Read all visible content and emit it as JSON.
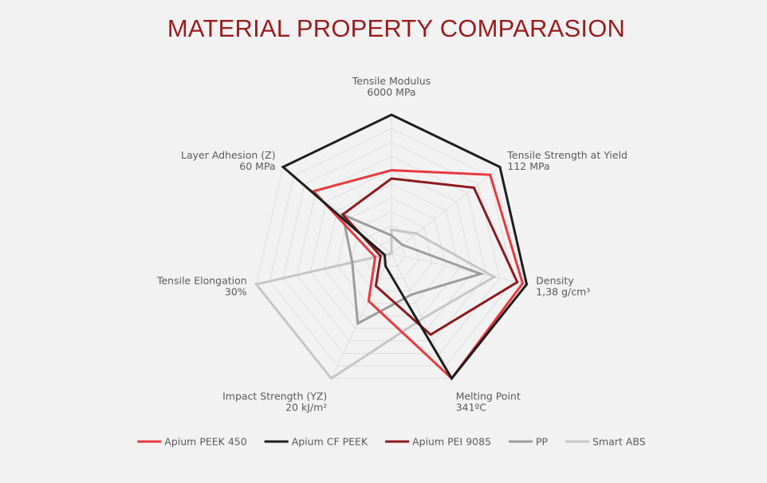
{
  "chart_data": {
    "type": "radar",
    "title": "MATERIAL PROPERTY COMPARASION",
    "axes": [
      {
        "name": "Tensile Modulus",
        "max_label": "6000 MPa"
      },
      {
        "name": "Tensile Strength at Yield",
        "max_label": "112 MPa"
      },
      {
        "name": "Density",
        "max_label": "1,38 g/cm³"
      },
      {
        "name": "Melting Point",
        "max_label": "341ºC"
      },
      {
        "name": "Impact Strength (YZ)",
        "max_label": "20 kJ/m²"
      },
      {
        "name": "Tensile Elongation",
        "max_label": "30%"
      },
      {
        "name": "Layer Adhesion (Z)",
        "max_label": "60 MPa"
      }
    ],
    "range": [
      0,
      1
    ],
    "grid_levels": 10,
    "series": [
      {
        "name": "Smart ABS",
        "color": "#c6c6c6",
        "values": [
          0.17,
          0.23,
          0.76,
          0.52,
          1.0,
          1.0,
          0.0
        ]
      },
      {
        "name": "PP",
        "color": "#9d9d9d",
        "values": [
          0.13,
          0.1,
          0.66,
          0.33,
          0.56,
          0.29,
          0.45
        ]
      },
      {
        "name": "Apium PEI 9085",
        "color": "#8b1a1f",
        "values": [
          0.54,
          0.76,
          0.93,
          0.65,
          0.26,
          0.08,
          0.45
        ]
      },
      {
        "name": "Apium PEEK 450",
        "color": "#e8393d",
        "values": [
          0.6,
          0.91,
          0.97,
          1.0,
          0.38,
          0.12,
          0.72
        ]
      },
      {
        "name": "Apium CF PEEK",
        "color": "#1e1e1e",
        "values": [
          1.0,
          1.0,
          1.0,
          1.0,
          0.1,
          0.05,
          1.0
        ]
      }
    ],
    "legend": {
      "position": "bottom",
      "order": [
        "Apium PEEK 450",
        "Apium CF PEEK",
        "Apium PEI 9085",
        "PP",
        "Smart ABS"
      ]
    }
  }
}
